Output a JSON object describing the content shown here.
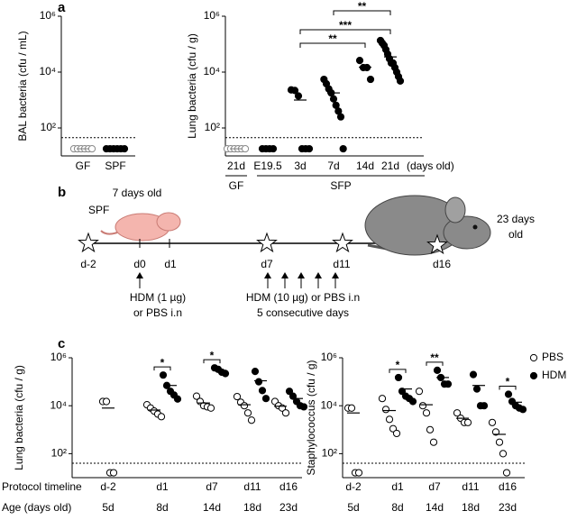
{
  "panels": [
    "a",
    "b",
    "c"
  ],
  "chart_data": [
    {
      "type": "strip",
      "y_label": "BAL bacteria (cfu / mL)",
      "log_y": true,
      "ylim": [
        10,
        1000000
      ],
      "yticks": [
        {
          "value": 100,
          "label": "10²"
        },
        {
          "value": 10000,
          "label": "10⁴"
        },
        {
          "value": 1000000,
          "label": "10⁶"
        }
      ],
      "detection_limit": 45,
      "categories": [
        "GF",
        "SPF"
      ],
      "series": [
        {
          "marker": "open",
          "color": "#888888",
          "values": [
            [
              18,
              18,
              18,
              18,
              18,
              18
            ],
            null
          ],
          "means": [
            18,
            null
          ]
        },
        {
          "marker": "filled",
          "color": "#000000",
          "values": [
            null,
            [
              18,
              18,
              18,
              18,
              18,
              18
            ]
          ],
          "means": [
            null,
            18
          ]
        }
      ]
    },
    {
      "type": "strip",
      "y_label": "Lung bacteria (cfu / g)",
      "log_y": true,
      "ylim": [
        10,
        1000000
      ],
      "yticks": [
        {
          "value": 100,
          "label": "10²"
        },
        {
          "value": 10000,
          "label": "10⁴"
        },
        {
          "value": 1000000,
          "label": "10⁶"
        }
      ],
      "detection_limit": 45,
      "categories": [
        "21d",
        "E19.5",
        "3d",
        "7d",
        "14d",
        "21d"
      ],
      "x_unit": "(days old)",
      "x_groups": [
        "GF",
        "SFP"
      ],
      "brackets": [
        "**",
        "***",
        "**"
      ],
      "series": [
        {
          "marker": "open",
          "color": "#888888",
          "values": [
            [
              18,
              18,
              18,
              18,
              18,
              18
            ],
            null,
            null,
            null,
            null,
            null
          ],
          "means": [
            18,
            null,
            null,
            null,
            null,
            null
          ]
        },
        {
          "marker": "filled",
          "color": "#000000",
          "values": [
            null,
            [
              18,
              18,
              18,
              18
            ],
            [
              2300,
              2200,
              1400,
              18,
              18,
              18
            ],
            [
              5500,
              3800,
              2500,
              1800,
              1100,
              650,
              400,
              250,
              18
            ],
            [
              26000,
              14500,
              14500,
              5500
            ],
            [
              135000,
              110000,
              90000,
              64000,
              44000,
              30000,
              21000,
              21000,
              14500,
              10000,
              6900,
              4800
            ]
          ],
          "means": [
            null,
            18,
            1000,
            1800,
            15000,
            35000
          ]
        }
      ]
    },
    {
      "type": "strip",
      "y_label": "Lung bacteria (cfu / g)",
      "log_y": true,
      "ylim": [
        10,
        1000000
      ],
      "yticks": [
        {
          "value": 100,
          "label": "10²"
        },
        {
          "value": 10000,
          "label": "10⁴"
        },
        {
          "value": 1000000,
          "label": "10⁶"
        }
      ],
      "detection_limit": 40,
      "categories": [
        "d-2",
        "d1",
        "d7",
        "d11",
        "d16"
      ],
      "ages": [
        "5d",
        "8d",
        "14d",
        "18d",
        "23d"
      ],
      "significance": [
        null,
        "*",
        "*",
        null,
        null
      ],
      "series": [
        {
          "marker": "open",
          "color": "#000000",
          "values": [
            [
              15000,
              15000,
              16,
              16
            ],
            [
              11000,
              8000,
              6000,
              4500,
              3500
            ],
            [
              25000,
              15000,
              10000,
              9000,
              8000
            ],
            [
              24000,
              14000,
              10000,
              5000,
              2500
            ],
            [
              15000,
              10000,
              8000,
              5000
            ]
          ],
          "means": [
            8000,
            6600,
            13000,
            11000,
            9500
          ]
        },
        {
          "marker": "filled",
          "color": "#000000",
          "values": [
            null,
            [
              190000,
              70000,
              40000,
              28000,
              19000
            ],
            [
              380000,
              330000,
              250000,
              220000
            ],
            [
              270000,
              100000,
              43000,
              20000
            ],
            [
              40000,
              25000,
              15000,
              10000,
              9000
            ]
          ],
          "means": [
            null,
            70000,
            300000,
            110000,
            20000
          ]
        }
      ]
    },
    {
      "type": "strip",
      "y_label": "Staphylococcus (cfu / g)",
      "log_y": true,
      "ylim": [
        10,
        1000000
      ],
      "yticks": [
        {
          "value": 100,
          "label": "10²"
        },
        {
          "value": 10000,
          "label": "10⁴"
        },
        {
          "value": 1000000,
          "label": "10⁶"
        }
      ],
      "detection_limit": 40,
      "categories": [
        "d-2",
        "d1",
        "d7",
        "d11",
        "d16"
      ],
      "ages": [
        "5d",
        "8d",
        "14d",
        "18d",
        "23d"
      ],
      "significance": [
        null,
        "*",
        "**",
        null,
        "*"
      ],
      "legend": "upper right",
      "series": [
        {
          "name": "PBS",
          "marker": "open",
          "color": "#000000",
          "values": [
            [
              8000,
              8000,
              16,
              16
            ],
            [
              20000,
              7000,
              2700,
              1100,
              700
            ],
            [
              40000,
              10000,
              5000,
              1000,
              300
            ],
            [
              5000,
              3000,
              2000,
              2000
            ],
            [
              2000,
              800,
              300,
              100,
              16
            ]
          ],
          "means": [
            5000,
            6300,
            11000,
            3000,
            640
          ]
        },
        {
          "name": "HDM",
          "marker": "filled",
          "color": "#000000",
          "values": [
            null,
            [
              150000,
              40000,
              25000,
              20000,
              15000
            ],
            [
              300000,
              150000,
              80000,
              80000
            ],
            [
              200000,
              50000,
              10000,
              10000
            ],
            [
              30000,
              15000,
              10000,
              8000,
              7000
            ]
          ],
          "means": [
            null,
            50000,
            150000,
            70000,
            14000
          ]
        }
      ]
    }
  ],
  "timeline": {
    "spf": "SPF",
    "start_age": "7 days old",
    "end_age": [
      "23 days",
      "old"
    ],
    "days": [
      "d-2",
      "d0",
      "d1",
      "d7",
      "d11",
      "d16"
    ],
    "first_dose": [
      "HDM (1 µg)",
      "or PBS i.n"
    ],
    "later_doses": [
      "HDM (10 µg) or PBS i.n",
      "5 consecutive days"
    ]
  },
  "row_labels": [
    "Protocol timeline",
    "Age (days old)"
  ]
}
